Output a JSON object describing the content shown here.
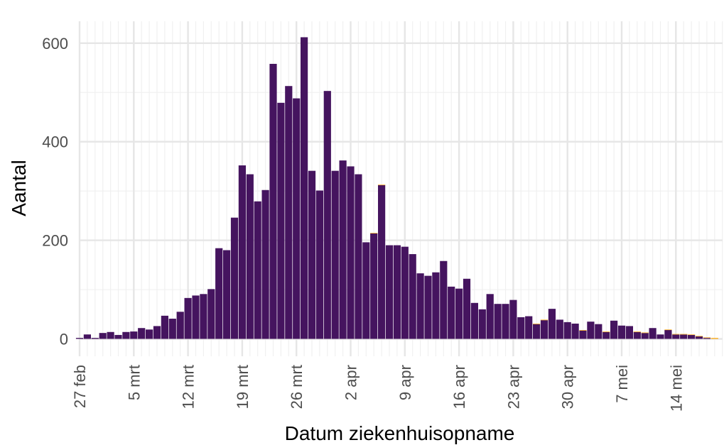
{
  "chart_data": {
    "type": "bar",
    "title": "",
    "xlabel": "Datum ziekenhuisopname",
    "ylabel": "Aantal",
    "ylim": [
      0,
      650
    ],
    "yticks": [
      0,
      200,
      400,
      600
    ],
    "x_start_date": "2020-02-27",
    "xticks": [
      {
        "date": "2020-02-27",
        "label": "27 feb"
      },
      {
        "date": "2020-03-05",
        "label": "5 mrt"
      },
      {
        "date": "2020-03-12",
        "label": "12 mrt"
      },
      {
        "date": "2020-03-19",
        "label": "19 mrt"
      },
      {
        "date": "2020-03-26",
        "label": "26 mrt"
      },
      {
        "date": "2020-04-02",
        "label": "2 apr"
      },
      {
        "date": "2020-04-09",
        "label": "9 apr"
      },
      {
        "date": "2020-04-16",
        "label": "16 apr"
      },
      {
        "date": "2020-04-23",
        "label": "23 apr"
      },
      {
        "date": "2020-04-30",
        "label": "30 apr"
      },
      {
        "date": "2020-05-07",
        "label": "7 mei"
      },
      {
        "date": "2020-05-14",
        "label": "14 mei"
      }
    ],
    "series": [
      {
        "color": "#45145f",
        "values": [
          2,
          9,
          2,
          12,
          14,
          8,
          14,
          15,
          22,
          19,
          26,
          47,
          41,
          55,
          83,
          88,
          91,
          101,
          184,
          180,
          246,
          352,
          334,
          279,
          302,
          558,
          479,
          513,
          488,
          612,
          341,
          301,
          503,
          341,
          362,
          350,
          334,
          196,
          214,
          312,
          190,
          190,
          187,
          172,
          133,
          128,
          135,
          158,
          106,
          102,
          122,
          73,
          60,
          91,
          71,
          71,
          79,
          44,
          46,
          30,
          38,
          61,
          39,
          34,
          31,
          17,
          35,
          30,
          14,
          37,
          27,
          26,
          14,
          12,
          22,
          9,
          18,
          9,
          9,
          8,
          5,
          2,
          0
        ]
      },
      {
        "color": "#fcae1e",
        "values": [
          0,
          0,
          0,
          0,
          0,
          0,
          0,
          0,
          0,
          0,
          0,
          0,
          0,
          0,
          0,
          0,
          0,
          0,
          0,
          0,
          0,
          0,
          0,
          0,
          0,
          0,
          0,
          0,
          0,
          0,
          0,
          0,
          0,
          0,
          0,
          0,
          0,
          0,
          1,
          1,
          0,
          0,
          0,
          0,
          0,
          0,
          0,
          0,
          0,
          0,
          0,
          0,
          0,
          0,
          0,
          0,
          0,
          0,
          0,
          1,
          1,
          0,
          0,
          0,
          0,
          1,
          0,
          0,
          1,
          0,
          0,
          0,
          1,
          1,
          0,
          0,
          1,
          1,
          1,
          1,
          1,
          1,
          2
        ]
      }
    ],
    "grid": true,
    "legend": "none"
  }
}
